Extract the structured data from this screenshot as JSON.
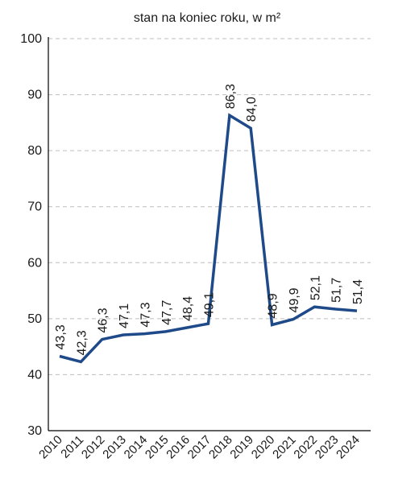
{
  "chart_data": {
    "type": "line",
    "title": "stan na koniec roku, w m²",
    "xlabel": "",
    "ylabel": "",
    "ylim": [
      30,
      100
    ],
    "yticks": [
      "30",
      "40",
      "50",
      "60",
      "70",
      "80",
      "90",
      "100"
    ],
    "grid": true,
    "line_color": "#1f4a8a",
    "categories": [
      "2010",
      "2011",
      "2012",
      "2013",
      "2014",
      "2015",
      "2016",
      "2017",
      "2018",
      "2019",
      "2020",
      "2021",
      "2022",
      "2023",
      "2024"
    ],
    "values": [
      43.3,
      42.3,
      46.3,
      47.1,
      47.3,
      47.7,
      48.4,
      49.1,
      86.3,
      84.0,
      48.9,
      49.9,
      52.1,
      51.7,
      51.4
    ],
    "data_labels": [
      "43,3",
      "42,3",
      "46,3",
      "47,1",
      "47,3",
      "47,7",
      "48,4",
      "49,1",
      "86,3",
      "84,0",
      "48,9",
      "49,9",
      "52,1",
      "51,7",
      "51,4"
    ]
  }
}
